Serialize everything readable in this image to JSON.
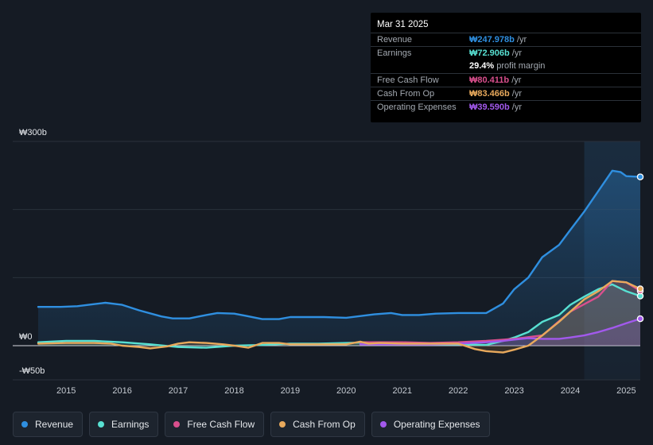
{
  "chart_data": {
    "type": "area",
    "currency": "₩",
    "y_axis_labels": [
      "₩300b",
      "₩0",
      "-₩50b"
    ],
    "ylim": [
      -50,
      300
    ],
    "xlim": [
      2014.5,
      2025.25
    ],
    "x_tick_labels": [
      "2015",
      "2016",
      "2017",
      "2018",
      "2019",
      "2020",
      "2021",
      "2022",
      "2023",
      "2024",
      "2025"
    ],
    "x_tick_values": [
      2015,
      2016,
      2017,
      2018,
      2019,
      2020,
      2021,
      2022,
      2023,
      2024,
      2025
    ],
    "highlight_start": 2024.25,
    "series": [
      {
        "name": "Revenue",
        "color": "#2f8fe0",
        "x": [
          2014.5,
          2014.9,
          2015.2,
          2015.5,
          2015.7,
          2016.0,
          2016.3,
          2016.7,
          2016.9,
          2017.2,
          2017.5,
          2017.7,
          2018.0,
          2018.2,
          2018.5,
          2018.8,
          2019.0,
          2019.3,
          2019.6,
          2020.0,
          2020.3,
          2020.5,
          2020.8,
          2021.0,
          2021.3,
          2021.6,
          2022.0,
          2022.3,
          2022.5,
          2022.8,
          2023.0,
          2023.25,
          2023.5,
          2023.8,
          2024.0,
          2024.25,
          2024.5,
          2024.75,
          2024.9,
          2025.0,
          2025.25
        ],
        "values": [
          57,
          57,
          58,
          61,
          63,
          60,
          52,
          43,
          40,
          40,
          45,
          48,
          47,
          44,
          39,
          39,
          42,
          42,
          42,
          41,
          44,
          46,
          48,
          45,
          45,
          47,
          48,
          48,
          48,
          62,
          83,
          100,
          130,
          148,
          170,
          197,
          227,
          257,
          255,
          249,
          247.978
        ]
      },
      {
        "name": "Earnings",
        "color": "#58e0d2",
        "x": [
          2014.5,
          2015.0,
          2015.5,
          2016.0,
          2016.5,
          2017.0,
          2017.5,
          2018.0,
          2018.5,
          2019.0,
          2019.5,
          2020.0,
          2020.5,
          2021.0,
          2021.5,
          2022.0,
          2022.5,
          2022.8,
          2023.0,
          2023.25,
          2023.5,
          2023.8,
          2024.0,
          2024.25,
          2024.5,
          2024.75,
          2025.0,
          2025.25
        ],
        "values": [
          5,
          7,
          7,
          5,
          2,
          -2,
          -3,
          0,
          1,
          3,
          3,
          4,
          5,
          3,
          2,
          2,
          1,
          7,
          12,
          20,
          35,
          45,
          60,
          72,
          83,
          90,
          80,
          72.906
        ]
      },
      {
        "name": "Free Cash Flow",
        "color": "#d94f8d",
        "x": [
          2020.25,
          2020.5,
          2021.0,
          2021.5,
          2022.0,
          2022.5,
          2023.0,
          2023.5,
          2024.0,
          2024.5,
          2024.75,
          2025.0,
          2025.25
        ],
        "values": [
          5,
          5,
          5,
          4,
          5,
          7,
          10,
          15,
          50,
          72,
          95,
          93,
          80.411
        ]
      },
      {
        "name": "Cash From Op",
        "color": "#e8a95c",
        "x": [
          2014.5,
          2015.0,
          2015.5,
          2015.8,
          2016.0,
          2016.3,
          2016.5,
          2016.8,
          2017.0,
          2017.2,
          2017.5,
          2017.8,
          2018.0,
          2018.25,
          2018.5,
          2018.8,
          2019.0,
          2019.5,
          2020.0,
          2020.25,
          2020.4,
          2020.6,
          2021.0,
          2021.5,
          2022.0,
          2022.3,
          2022.5,
          2022.8,
          2023.0,
          2023.25,
          2023.5,
          2023.8,
          2024.0,
          2024.25,
          2024.5,
          2024.75,
          2025.0,
          2025.25
        ],
        "values": [
          3,
          4,
          4,
          3,
          0,
          -2,
          -4,
          -1,
          3,
          5,
          4,
          2,
          0,
          -3,
          4,
          4,
          2,
          2,
          2,
          6,
          3,
          4,
          3,
          3,
          3,
          -5,
          -8,
          -10,
          -6,
          0,
          15,
          35,
          50,
          68,
          80,
          95,
          93,
          83.466
        ]
      },
      {
        "name": "Operating Expenses",
        "color": "#a259ec",
        "x": [
          2020.25,
          2020.5,
          2021.0,
          2021.5,
          2022.0,
          2022.5,
          2022.8,
          2023.0,
          2023.25,
          2023.5,
          2023.8,
          2024.0,
          2024.25,
          2024.5,
          2024.75,
          2025.0,
          2025.25
        ],
        "values": [
          2,
          2,
          2,
          2,
          3,
          5,
          7,
          9,
          11,
          10,
          10,
          12,
          15,
          20,
          26,
          33,
          39.59
        ]
      }
    ]
  },
  "tooltip": {
    "date": "Mar 31 2025",
    "rows": [
      {
        "label": "Revenue",
        "value": "₩247.978b",
        "unit": " /yr",
        "color": "#2f8fe0"
      },
      {
        "label": "Earnings",
        "value": "₩72.906b",
        "unit": " /yr",
        "color": "#58e0d2"
      },
      {
        "margin_value": "29.4%",
        "margin_label": " profit margin"
      },
      {
        "label": "Free Cash Flow",
        "value": "₩80.411b",
        "unit": " /yr",
        "color": "#d94f8d"
      },
      {
        "label": "Cash From Op",
        "value": "₩83.466b",
        "unit": " /yr",
        "color": "#e8a95c"
      },
      {
        "label": "Operating Expenses",
        "value": "₩39.590b",
        "unit": " /yr",
        "color": "#a259ec"
      }
    ]
  },
  "legend": [
    {
      "label": "Revenue",
      "color": "#2f8fe0"
    },
    {
      "label": "Earnings",
      "color": "#58e0d2"
    },
    {
      "label": "Free Cash Flow",
      "color": "#d94f8d"
    },
    {
      "label": "Cash From Op",
      "color": "#e8a95c"
    },
    {
      "label": "Operating Expenses",
      "color": "#a259ec"
    }
  ]
}
